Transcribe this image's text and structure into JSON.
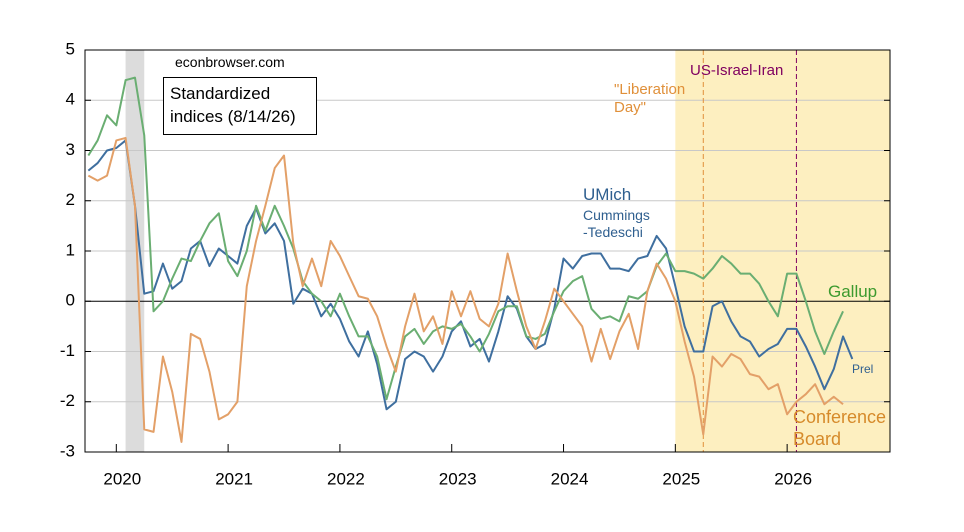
{
  "chart_data": {
    "type": "line",
    "annotations": [
      "econbrowser.com",
      "Standardized indices (8/14/26)",
      "Prel"
    ],
    "series_notes": [
      "Cummings -Tedeschi"
    ],
    "x": [
      2019.75,
      2019.833,
      2019.917,
      2020,
      2020.083,
      2020.167,
      2020.25,
      2020.333,
      2020.417,
      2020.5,
      2020.583,
      2020.667,
      2020.75,
      2020.833,
      2020.917,
      2021,
      2021.083,
      2021.167,
      2021.25,
      2021.333,
      2021.417,
      2021.5,
      2021.583,
      2021.667,
      2021.75,
      2021.833,
      2021.917,
      2022,
      2022.083,
      2022.167,
      2022.25,
      2022.333,
      2022.417,
      2022.5,
      2022.583,
      2022.667,
      2022.75,
      2022.833,
      2022.917,
      2023,
      2023.083,
      2023.167,
      2023.25,
      2023.333,
      2023.417,
      2023.5,
      2023.583,
      2023.667,
      2023.75,
      2023.833,
      2023.917,
      2024,
      2024.083,
      2024.167,
      2024.25,
      2024.333,
      2024.417,
      2024.5,
      2024.583,
      2024.667,
      2024.75,
      2024.833,
      2024.917,
      2025,
      2025.083,
      2025.167,
      2025.25,
      2025.333,
      2025.417,
      2025.5,
      2025.583,
      2025.667,
      2025.75,
      2025.833,
      2025.917,
      2026,
      2026.083,
      2026.167,
      2026.25,
      2026.333,
      2026.417,
      2026.5,
      2026.583
    ],
    "series": [
      {
        "name": "UMich",
        "color": "#3f6f9f",
        "label_color": "#2f5f8f",
        "values": [
          2.6,
          2.75,
          3.0,
          3.05,
          3.2,
          1.9,
          0.15,
          0.2,
          0.75,
          0.25,
          0.4,
          1.05,
          1.2,
          0.7,
          1.05,
          0.9,
          0.75,
          1.5,
          1.85,
          1.35,
          1.55,
          1.2,
          -0.05,
          0.25,
          0.15,
          -0.3,
          -0.05,
          -0.35,
          -0.8,
          -1.1,
          -0.6,
          -1.25,
          -2.15,
          -2.0,
          -1.15,
          -1.0,
          -1.1,
          -1.4,
          -1.1,
          -0.6,
          -0.4,
          -0.9,
          -0.75,
          -1.2,
          -0.6,
          0.1,
          -0.15,
          -0.7,
          -0.95,
          -0.85,
          -0.15,
          0.85,
          0.65,
          0.9,
          0.95,
          0.95,
          0.65,
          0.65,
          0.6,
          0.85,
          0.9,
          1.3,
          1.05,
          0.3,
          -0.5,
          -1.0,
          -1.0,
          -0.1,
          0.0,
          -0.4,
          -0.7,
          -0.8,
          -1.1,
          -0.95,
          -0.85,
          -0.55,
          -0.55,
          -0.9,
          -1.3,
          -1.75,
          -1.35,
          -0.7,
          -1.15
        ]
      },
      {
        "name": "Gallup",
        "color": "#6aae72",
        "label_color": "#3c9a2e",
        "values": [
          2.9,
          3.2,
          3.7,
          3.5,
          4.4,
          4.45,
          3.3,
          -0.2,
          0.0,
          0.45,
          0.85,
          0.8,
          1.2,
          1.55,
          1.75,
          0.8,
          0.5,
          1.0,
          1.9,
          1.4,
          1.9,
          1.5,
          1.05,
          0.4,
          0.15,
          0.0,
          -0.3,
          0.15,
          -0.3,
          -0.7,
          -0.7,
          -1.1,
          -1.95,
          -1.3,
          -0.7,
          -0.55,
          -0.85,
          -0.6,
          -0.5,
          -0.55,
          -0.45,
          -0.7,
          -1.0,
          -0.65,
          -0.2,
          -0.1,
          -0.1,
          -0.7,
          -0.75,
          -0.65,
          -0.2,
          0.2,
          0.4,
          0.5,
          -0.15,
          -0.35,
          -0.3,
          -0.4,
          0.1,
          0.05,
          0.2,
          0.7,
          0.95,
          0.6,
          0.6,
          0.55,
          0.45,
          0.65,
          0.9,
          0.75,
          0.55,
          0.55,
          0.35,
          0.0,
          -0.3,
          0.55,
          0.55,
          0.0,
          -0.6,
          -1.05,
          -0.6,
          -0.2,
          null
        ]
      },
      {
        "name": "Conference Board",
        "color": "#e3a068",
        "label_color": "#d68a2a",
        "values": [
          2.5,
          2.4,
          2.5,
          3.2,
          3.25,
          1.9,
          -2.55,
          -2.6,
          -1.1,
          -1.8,
          -2.8,
          -0.65,
          -0.75,
          -1.4,
          -2.35,
          -2.25,
          -2.0,
          0.3,
          1.2,
          1.9,
          2.65,
          2.9,
          1.15,
          0.3,
          0.85,
          0.3,
          1.2,
          0.9,
          0.5,
          0.1,
          0.05,
          -0.3,
          -0.9,
          -1.4,
          -0.5,
          0.15,
          -0.6,
          -0.3,
          -0.85,
          0.2,
          -0.3,
          0.2,
          -0.35,
          -0.5,
          -0.05,
          0.95,
          0.2,
          -0.5,
          -0.95,
          -0.4,
          0.25,
          0.0,
          -0.25,
          -0.5,
          -1.2,
          -0.55,
          -1.15,
          -0.6,
          -0.25,
          -0.95,
          0.2,
          0.75,
          0.45,
          0.0,
          -0.8,
          -1.5,
          -2.65,
          -1.1,
          -1.3,
          -1.05,
          -1.15,
          -1.45,
          -1.5,
          -1.75,
          -1.65,
          -2.25,
          -2.0,
          -1.85,
          -1.65,
          -2.05,
          -1.9,
          -2.05,
          null
        ]
      }
    ],
    "shaded": [
      {
        "x": [
          2020.083,
          2020.25
        ],
        "color": "#dcdcdc"
      },
      {
        "x": [
          2025.0,
          2026.92
        ],
        "color": "#fdefc0"
      }
    ],
    "events": [
      {
        "x": 2025.25,
        "label": "\"Liberation Day\"",
        "color": "#e0903a"
      },
      {
        "x": 2026.083,
        "label": "US-Israel-Iran",
        "color": "#800060"
      }
    ],
    "xlim": [
      2019.72,
      2026.92
    ],
    "xticks": [
      2020,
      2021,
      2022,
      2023,
      2024,
      2025,
      2026
    ],
    "ylim": [
      -3,
      5
    ],
    "yticks": [
      -3,
      -2,
      -1,
      0,
      1,
      2,
      3,
      4,
      5
    ],
    "grid": true
  }
}
